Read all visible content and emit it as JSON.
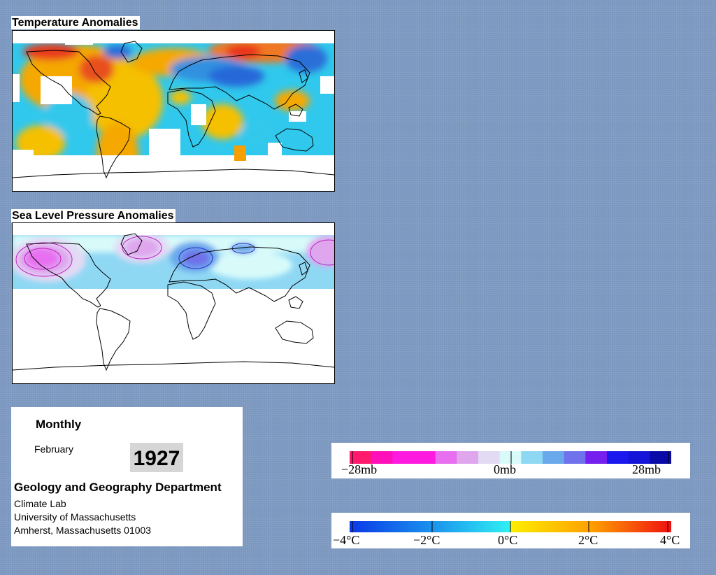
{
  "panels": {
    "temperature_title": "Temperature Anomalies",
    "pressure_title": "Sea Level Pressure Anomalies"
  },
  "info": {
    "frequency": "Monthly",
    "month": "February",
    "year": "1927",
    "department": "Geology and Geography Department",
    "lab": "Climate Lab",
    "university": "University of Massachusetts",
    "address": "Amherst, Massachusetts 01003"
  },
  "pressure_legend": {
    "labels": [
      "−28mb",
      "0mb",
      "28mb"
    ],
    "colors": [
      "#ff1a6e",
      "#ff10b8",
      "#ff1ae0",
      "#ff1ae0",
      "#e870f0",
      "#dfa6ee",
      "#e3daf4",
      "#d8fbfa",
      "#8fd8f4",
      "#6aa8ec",
      "#6f72ea",
      "#7520ee",
      "#1a18ec",
      "#1414d8",
      "#0a0aa8"
    ]
  },
  "temperature_legend": {
    "labels": [
      "−4°C",
      "−2°C",
      "0°C",
      "2°C",
      "4°C"
    ]
  },
  "colors": {
    "background": "#7b97bf",
    "warm": "#f5a800",
    "hot": "#e8301a",
    "cool": "#30c8ec",
    "cold": "#2868d8"
  }
}
